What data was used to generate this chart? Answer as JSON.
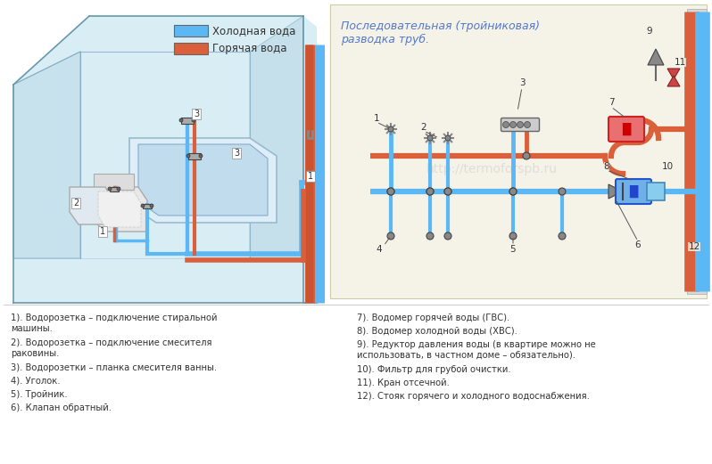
{
  "background_color": "#ffffff",
  "figsize": [
    7.98,
    5.21
  ],
  "dpi": 100,
  "legend_items": [
    {
      "label": "Холодная вода",
      "color": "#5bb8f5"
    },
    {
      "label": "Горячая вода",
      "color": "#d9603a"
    }
  ],
  "diagram_title": "Последовательная (тройниковая)\nразводка труб.",
  "diagram_title_color": "#5577cc",
  "watermark": "http://termoforspb.ru",
  "cold_color": "#5bb8f5",
  "hot_color": "#d9603a",
  "pipe_lw": 4.5,
  "wall_color": "#cc3333",
  "room_bg": "#c8e8f0",
  "diagram_bg": "#f5f3e8",
  "note_fontsize": 7.2,
  "title_fontsize": 9.0,
  "left_notes": [
    "1). Водорозетка – подключение стиральной\nмашины.",
    "2). Водорозетка – подключение смесителя\nраковины.",
    "3). Водорозетки – планка смесителя ванны.",
    "4). Уголок.",
    "5). Тройник.",
    "6). Клапан обратный."
  ],
  "right_notes": [
    "7). Водомер горячей воды (ГВС).",
    "8). Водомер холодной воды (ХВС).",
    "9). Редуктор давления воды (в квартире можно не\nиспользовать, в частном доме – обязательно).",
    "10). Фильтр для грубой очистки.",
    "11). Кран отсечной.",
    "12). Стояк горячего и холодного водоснабжения."
  ]
}
